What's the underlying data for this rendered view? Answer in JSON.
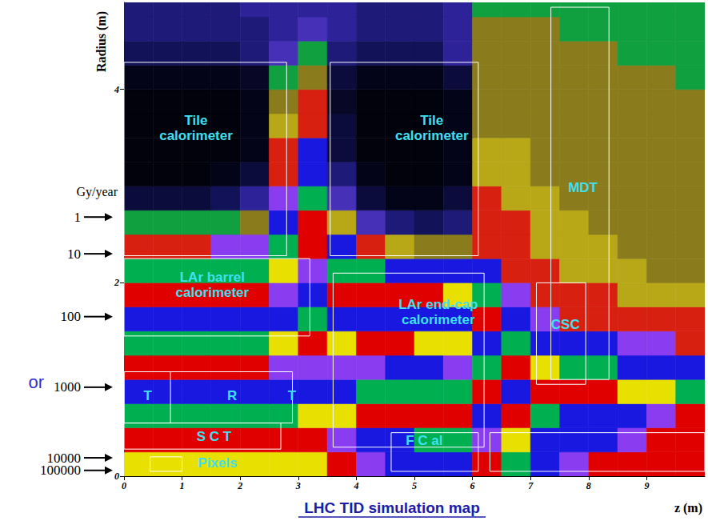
{
  "chart_data": {
    "type": "heatmap",
    "title": "LHC TID simulation map",
    "x_label": "z (m)",
    "y_label": "Radius (m)",
    "xlim": [
      0,
      10
    ],
    "xticks": [
      0,
      1,
      2,
      3,
      4,
      5,
      6,
      7,
      8,
      9
    ],
    "ylim": [
      0,
      4.9
    ],
    "yticks": [
      0,
      2,
      4
    ],
    "grid": false,
    "z_bins": [
      0,
      0.5,
      1,
      1.5,
      2,
      2.5,
      3,
      3.5,
      4,
      4.5,
      5,
      5.5,
      6,
      6.5,
      7,
      7.5,
      8,
      8.5,
      9,
      9.5,
      10
    ],
    "r_bins": [
      0,
      0.25,
      0.5,
      0.75,
      1,
      1.25,
      1.5,
      1.75,
      2,
      2.25,
      2.5,
      2.75,
      3,
      3.25,
      3.5,
      3.75,
      4,
      4.25,
      4.5,
      4.75,
      5
    ],
    "cells": [
      [
        30000,
        30000,
        30000,
        30000,
        30000,
        30000,
        30000,
        50000,
        80000,
        100000,
        150000,
        150000,
        50000,
        20000,
        10000,
        8000,
        6000,
        5000,
        4000,
        4000
      ],
      [
        4000,
        4000,
        4000,
        4000,
        4000,
        5000,
        6000,
        8000,
        10000,
        15000,
        20000,
        20000,
        8000,
        3000,
        1500,
        1200,
        1000,
        800,
        600,
        500
      ],
      [
        2000,
        2000,
        2000,
        2000,
        2200,
        2500,
        3000,
        3000,
        4000,
        5000,
        6000,
        5000,
        1500,
        500,
        200,
        150,
        120,
        100,
        80,
        60
      ],
      [
        1000,
        1000,
        1000,
        1000,
        1100,
        1300,
        1500,
        1500,
        2000,
        2500,
        2500,
        2000,
        600,
        150,
        60,
        50,
        40,
        30,
        30,
        25
      ],
      [
        500,
        500,
        500,
        500,
        550,
        650,
        800,
        700,
        900,
        1000,
        1000,
        800,
        250,
        60,
        30,
        25,
        20,
        15,
        15,
        12
      ],
      [
        220,
        220,
        220,
        230,
        250,
        300,
        400,
        300,
        400,
        400,
        350,
        300,
        100,
        25,
        15,
        12,
        10,
        8,
        8,
        6
      ],
      [
        110,
        110,
        110,
        115,
        125,
        150,
        200,
        150,
        150,
        150,
        120,
        100,
        40,
        12,
        8,
        6,
        5,
        5,
        4,
        4
      ],
      [
        50,
        50,
        50,
        55,
        60,
        80,
        120,
        60,
        50,
        45,
        40,
        35,
        20,
        8,
        5,
        4,
        4,
        3.5,
        3,
        3
      ],
      [
        20,
        20,
        20,
        22,
        25,
        35,
        80,
        25,
        20,
        15,
        12,
        12,
        10,
        6,
        4,
        3.5,
        3,
        3,
        2.5,
        2.5
      ],
      [
        6,
        6,
        6,
        7,
        8,
        20,
        60,
        10,
        5,
        3,
        2,
        2,
        6,
        5,
        3.5,
        3,
        3,
        2.5,
        2.5,
        2
      ],
      [
        1.4,
        1.4,
        1.4,
        1.5,
        2,
        12,
        40,
        3,
        0.8,
        0.3,
        0.2,
        0.3,
        5,
        4,
        3,
        3,
        2.5,
        2.5,
        2,
        2
      ],
      [
        0.15,
        0.15,
        0.15,
        0.2,
        0.4,
        8,
        25,
        0.8,
        0.15,
        0.05,
        0.05,
        0.1,
        4,
        3.5,
        3,
        2.5,
        2.5,
        2,
        2,
        2
      ],
      [
        0.03,
        0.03,
        0.03,
        0.04,
        0.1,
        6,
        15,
        0.3,
        0.05,
        0.03,
        0.03,
        0.06,
        3.5,
        3,
        2.5,
        2.5,
        2,
        2,
        2,
        1.8
      ],
      [
        0.03,
        0.03,
        0.03,
        0.03,
        0.06,
        4,
        10,
        0.15,
        0.03,
        0.03,
        0.03,
        0.05,
        3,
        2.8,
        2.5,
        2.2,
        2,
        2,
        1.8,
        1.8
      ],
      [
        0.03,
        0.03,
        0.03,
        0.03,
        0.05,
        3,
        6,
        0.1,
        0.03,
        0.03,
        0.03,
        0.05,
        2.5,
        2.5,
        2.2,
        2,
        2,
        1.8,
        1.8,
        1.6
      ],
      [
        0.03,
        0.03,
        0.03,
        0.03,
        0.05,
        2,
        4,
        0.08,
        0.03,
        0.03,
        0.03,
        0.06,
        2.2,
        2.2,
        2,
        2,
        1.8,
        1.8,
        1.6,
        1.6
      ],
      [
        0.05,
        0.05,
        0.05,
        0.05,
        0.08,
        1.5,
        2.5,
        0.1,
        0.05,
        0.04,
        0.04,
        0.1,
        2,
        2,
        2,
        1.8,
        1.8,
        1.6,
        1.6,
        1.5
      ],
      [
        0.2,
        0.2,
        0.2,
        0.2,
        0.3,
        0.8,
        1.2,
        0.3,
        0.2,
        0.2,
        0.2,
        0.4,
        1.8,
        1.8,
        1.8,
        1.6,
        1.6,
        1.5,
        1.5,
        1.5
      ],
      [
        0.3,
        0.3,
        0.3,
        0.3,
        0.35,
        0.5,
        0.8,
        0.4,
        0.3,
        0.3,
        0.3,
        0.5,
        1.6,
        1.6,
        1.6,
        1.5,
        1.5,
        1.4,
        1.4,
        1.4
      ],
      [
        0.35,
        0.35,
        0.35,
        0.35,
        0.4,
        0.5,
        0.6,
        0.45,
        0.35,
        0.35,
        0.35,
        0.5,
        1.5,
        1.5,
        1.5,
        1.4,
        1.4,
        1.3,
        1.3,
        1.3
      ]
    ],
    "colorbar": {
      "title": "Gy/year",
      "range": [
        0.01,
        1000000
      ],
      "colors": [
        "#000000",
        "#000000",
        "#02020c",
        "#040418",
        "#080826",
        "#0c0c3c",
        "#121258",
        "#1e1a78",
        "#2e2298",
        "#4630b8",
        "#10a040",
        "#8a7c1c",
        "#b8a818",
        "#d82010",
        "#8a3cf0",
        "#1818e0",
        "#00b050",
        "#e8e000",
        "#e00000",
        "#8a3cf0",
        "#1818e0",
        "#00b050",
        "#e8e000",
        "#e00000",
        "#8a3cf0",
        "#1818e0",
        "#00b050",
        "#e8e000",
        "#e00000",
        "#8a3cf0",
        "#1818e0",
        "#00b050",
        "#e8e000",
        "#e00000",
        "#8a3cf0",
        "#1818e0",
        "#00b050",
        "#e8e000",
        "#e00000",
        "#8a3cf0"
      ],
      "ticks": [
        {
          "value": 1,
          "r": 2.68
        },
        {
          "value": 10,
          "r": 2.3
        },
        {
          "value": 100,
          "r": 1.65
        },
        {
          "value": 1000,
          "r": 0.92
        },
        {
          "value": 10000,
          "r": 0.19
        },
        {
          "value": 100000,
          "r": 0.06
        }
      ]
    },
    "note": {
      "text": "or",
      "tick": 1000
    },
    "annotations": [
      {
        "text": "Tile calorimeter",
        "z": 1.24,
        "r": 3.6
      },
      {
        "text": "Tile calorimeter",
        "z": 5.3,
        "r": 3.6
      },
      {
        "text": "MDT",
        "z": 7.9,
        "r": 2.98
      },
      {
        "text": "LAr barrel calorimeter",
        "z": 1.52,
        "r": 1.98
      },
      {
        "text": "LAr end-cap calorimeter",
        "z": 5.41,
        "r": 1.7
      },
      {
        "text": "CSC",
        "z": 7.6,
        "r": 1.57
      },
      {
        "text": "T",
        "z": 0.41,
        "r": 0.83
      },
      {
        "text": "R",
        "z": 1.86,
        "r": 0.83
      },
      {
        "text": "T",
        "z": 2.89,
        "r": 0.83
      },
      {
        "text": "S C T",
        "z": 1.55,
        "r": 0.41
      },
      {
        "text": "Pixels",
        "z": 1.61,
        "r": 0.14
      },
      {
        "text": "F C al",
        "z": 5.17,
        "r": 0.37
      }
    ],
    "outlines": [
      [
        0,
        2.28,
        2.8,
        4.28
      ],
      [
        3.55,
        2.28,
        6.1,
        4.28
      ],
      [
        0,
        1.45,
        3.2,
        2.25
      ],
      [
        3.6,
        0.3,
        6.2,
        2.1
      ],
      [
        0,
        0.55,
        2.9,
        1.08
      ],
      [
        0,
        0.55,
        0.8,
        1.08
      ],
      [
        0,
        0.28,
        2.7,
        0.55
      ],
      [
        0.45,
        0.05,
        1.0,
        0.2
      ],
      [
        4.6,
        0.05,
        6.1,
        0.45
      ],
      [
        7.35,
        1.0,
        8.35,
        4.85
      ],
      [
        7.1,
        0.95,
        7.95,
        2.0
      ],
      [
        6.3,
        0.05,
        10,
        0.45
      ]
    ]
  }
}
